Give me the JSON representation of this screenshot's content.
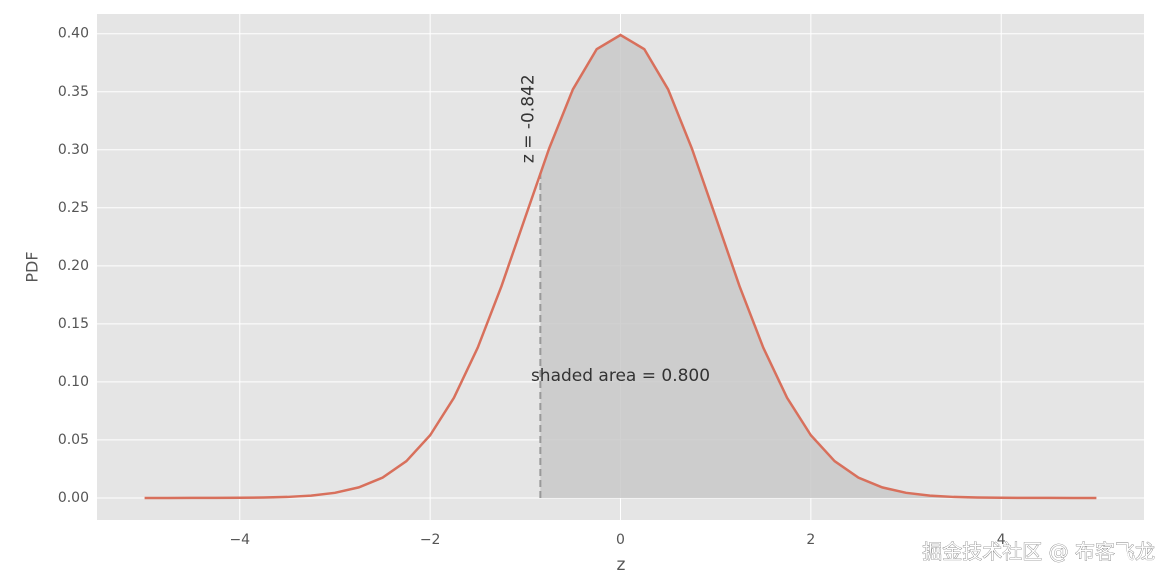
{
  "chart_data": {
    "type": "line",
    "xlabel": "z",
    "ylabel": "PDF",
    "xlim": [
      -5.5,
      5.5
    ],
    "ylim": [
      -0.019,
      0.417
    ],
    "xticks": [
      {
        "value": -4,
        "label": "−4"
      },
      {
        "value": -2,
        "label": "−2"
      },
      0,
      2,
      4
    ],
    "yticks": [
      {
        "value": 0,
        "label": "0.00"
      },
      {
        "value": 0.05,
        "label": "0.05"
      },
      {
        "value": 0.1,
        "label": "0.10"
      },
      {
        "value": 0.15,
        "label": "0.15"
      },
      {
        "value": 0.2,
        "label": "0.20"
      },
      {
        "value": 0.25,
        "label": "0.25"
      },
      {
        "value": 0.3,
        "label": "0.30"
      },
      {
        "value": 0.35,
        "label": "0.35"
      },
      {
        "value": 0.4,
        "label": "0.40"
      }
    ],
    "grid": true,
    "line": {
      "color": "#d8705c",
      "x": [
        -5,
        -4.75,
        -4.5,
        -4.25,
        -4,
        -3.75,
        -3.5,
        -3.25,
        -3,
        -2.75,
        -2.5,
        -2.25,
        -2,
        -1.75,
        -1.5,
        -1.25,
        -1,
        -0.75,
        -0.5,
        -0.25,
        0,
        0.25,
        0.5,
        0.75,
        1,
        1.25,
        1.5,
        1.75,
        2,
        2.25,
        2.5,
        2.75,
        3,
        3.25,
        3.5,
        3.75,
        4,
        4.25,
        4.5,
        4.75,
        5
      ],
      "values": [
        1.5e-06,
        5.1e-06,
        1.6e-05,
        4.9e-05,
        0.000134,
        0.000353,
        0.000873,
        0.00203,
        0.00443,
        0.00909,
        0.0175,
        0.0317,
        0.054,
        0.0863,
        0.1295,
        0.1826,
        0.242,
        0.3011,
        0.3521,
        0.3867,
        0.3989,
        0.3867,
        0.3521,
        0.3011,
        0.242,
        0.1826,
        0.1295,
        0.0863,
        0.054,
        0.0317,
        0.0175,
        0.00909,
        0.00443,
        0.00203,
        0.000873,
        0.000353,
        0.000134,
        4.9e-05,
        1.6e-05,
        5.1e-06,
        1.5e-06
      ]
    },
    "shaded": {
      "color": "#c9c9c9",
      "x": [
        -0.842,
        -0.75,
        -0.5,
        -0.25,
        0,
        0.25,
        0.5,
        0.75,
        1,
        1.25,
        1.5,
        1.75,
        2,
        2.25,
        2.5,
        2.75,
        3,
        3.25,
        3.5,
        3.75,
        4,
        4.25,
        4.5,
        4.75,
        5
      ],
      "values": [
        0.2799,
        0.3011,
        0.3521,
        0.3867,
        0.3989,
        0.3867,
        0.3521,
        0.3011,
        0.242,
        0.1826,
        0.1295,
        0.0863,
        0.054,
        0.0317,
        0.0175,
        0.00909,
        0.00443,
        0.00203,
        0.000873,
        0.000353,
        0.000134,
        4.9e-05,
        1.6e-05,
        5.1e-06,
        1.5e-06
      ]
    },
    "vline": {
      "x": -0.842,
      "y": 0.2799,
      "color": "#999999"
    },
    "annotations": [
      "z = -0.842",
      "shaded area = 0.800"
    ],
    "watermark": "掘金技术社区 @ 布客飞龙"
  }
}
